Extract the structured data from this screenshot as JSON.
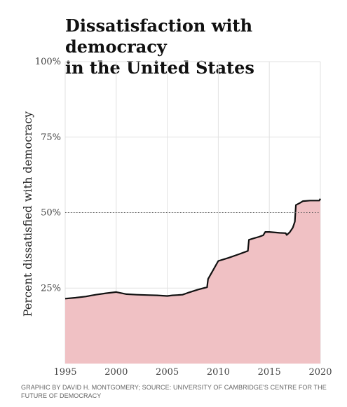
{
  "title_lines": [
    "Dissatisfaction with democracy",
    "in the United States"
  ],
  "credit_lines": [
    "GRAPHIC BY DAVID H. MONTGOMERY; SOURCE: UNIVERSITY OF CAMBRIDGE'S CENTRE FOR THE",
    "FUTURE OF DEMOCRACY"
  ],
  "colors": {
    "area": "#f0c1c4",
    "line": "#111111",
    "grid": "#e2e2e2",
    "reference": "#555555",
    "text": "#444444"
  },
  "chart_data": {
    "type": "area",
    "title": "Dissatisfaction with democracy in the United States",
    "xlabel": "",
    "ylabel": "Percent dissatisfied with democracy",
    "xlim": [
      1995,
      2020
    ],
    "ylim": [
      0,
      100
    ],
    "x_ticks": [
      1995,
      2000,
      2005,
      2010,
      2015,
      2020
    ],
    "x_tick_labels": [
      "1995",
      "2000",
      "2005",
      "2010",
      "2015",
      "2020"
    ],
    "y_ticks": [
      25,
      50,
      75,
      100
    ],
    "y_tick_labels": [
      "25%",
      "50%",
      "75%",
      "100%"
    ],
    "reference_line": {
      "y": 50,
      "style": "dotted"
    },
    "grid": true,
    "series": [
      {
        "x": [
          1995,
          1996,
          1997,
          1998,
          1999,
          2000,
          2001,
          2002,
          2003,
          2004,
          2005,
          2005.5,
          2006,
          2006.5,
          2007,
          2008,
          2008.9,
          2009,
          2009.5,
          2010,
          2010.5,
          2011,
          2012,
          2012.9,
          2013,
          2013.5,
          2014,
          2014.4,
          2014.6,
          2015,
          2016,
          2016.6,
          2016.7,
          2017,
          2017.3,
          2017.5,
          2017.6,
          2018,
          2018.3,
          2019,
          2019.9,
          2020
        ],
        "y": [
          21.5,
          21.8,
          22.2,
          22.8,
          23.3,
          23.7,
          23.0,
          22.8,
          22.7,
          22.6,
          22.4,
          22.6,
          22.7,
          22.8,
          23.4,
          24.5,
          25.3,
          28.0,
          31.0,
          34.0,
          34.5,
          35.0,
          36.2,
          37.3,
          41.0,
          41.5,
          42.0,
          42.5,
          43.6,
          43.6,
          43.3,
          43.2,
          42.6,
          43.5,
          45.0,
          47.0,
          52.5,
          53.2,
          53.8,
          54.0,
          54.0,
          54.6
        ]
      }
    ]
  }
}
